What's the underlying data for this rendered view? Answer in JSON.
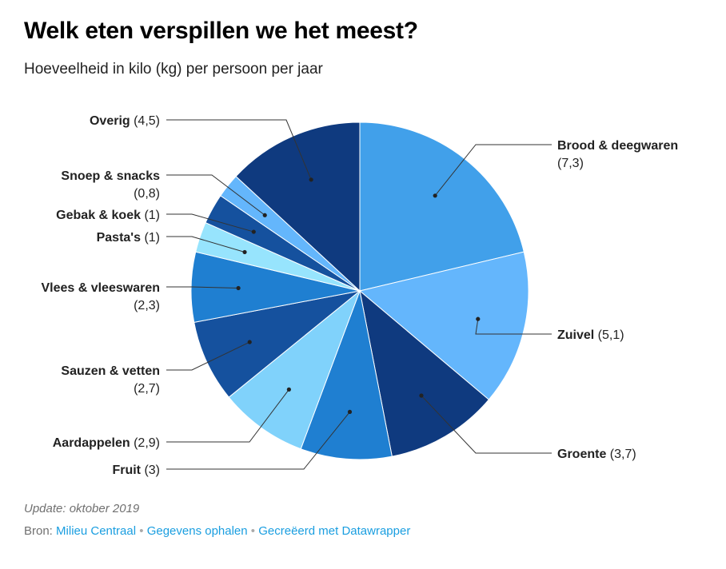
{
  "title": "Welk eten verspillen we het meest?",
  "subtitle": "Hoeveelheid in kilo (kg) per persoon per jaar",
  "footer": {
    "update": "Update: oktober 2019",
    "source_prefix": "Bron:",
    "source_link": "Milieu Centraal",
    "data_link": "Gegevens ophalen",
    "made_with": "Gecreëerd met Datawrapper"
  },
  "chart_data": {
    "type": "pie",
    "slices": [
      {
        "label": "Brood & deegwaren",
        "value": 7.3,
        "value_text": "(7,3)",
        "color": "#41a0ea"
      },
      {
        "label": "Zuivel",
        "value": 5.1,
        "value_text": "(5,1)",
        "color": "#64b6fc"
      },
      {
        "label": "Groente",
        "value": 3.7,
        "value_text": "(3,7)",
        "color": "#0f3a7f"
      },
      {
        "label": "Fruit",
        "value": 3,
        "value_text": "(3)",
        "color": "#1f7fd1"
      },
      {
        "label": "Aardappelen",
        "value": 2.9,
        "value_text": "(2,9)",
        "color": "#80d2fb"
      },
      {
        "label": "Sauzen & vetten",
        "value": 2.7,
        "value_text": "(2,7)",
        "color": "#15519e"
      },
      {
        "label": "Vlees & vleeswaren",
        "value": 2.3,
        "value_text": "(2,3)",
        "color": "#1f7fd1"
      },
      {
        "label": "Pasta's",
        "value": 1,
        "value_text": "(1)",
        "color": "#97e4fd"
      },
      {
        "label": "Gebak & koek",
        "value": 1,
        "value_text": "(1)",
        "color": "#15519e"
      },
      {
        "label": "Snoep & snacks",
        "value": 0.8,
        "value_text": "(0,8)",
        "color": "#64b6fc"
      },
      {
        "label": "Overig",
        "value": 4.5,
        "value_text": "(4,5)",
        "color": "#0f3a7f"
      }
    ]
  }
}
